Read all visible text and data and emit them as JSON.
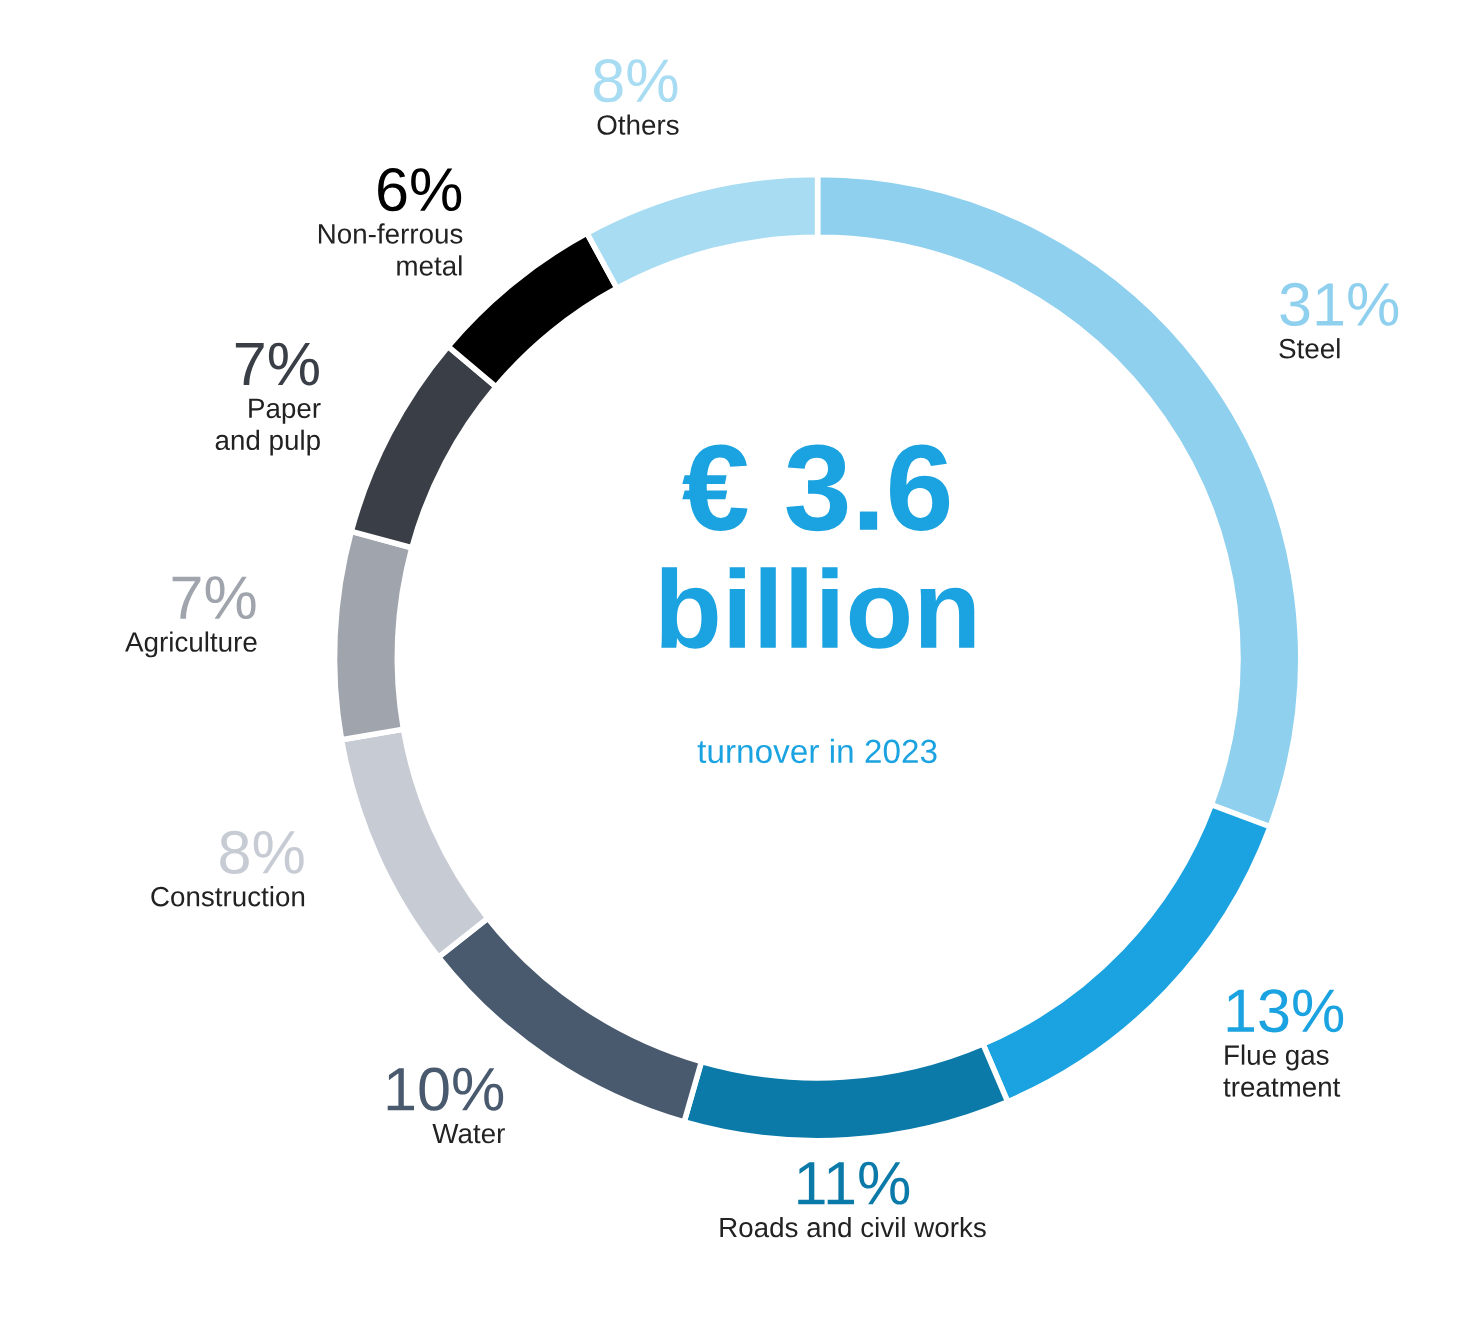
{
  "chart_data": {
    "type": "donut",
    "categories": [
      "Steel",
      "Flue gas\ntreatment",
      "Roads and civil works",
      "Water",
      "Construction",
      "Agriculture",
      "Paper\nand pulp",
      "Non-ferrous\nmetal",
      "Others"
    ],
    "values": [
      31,
      13,
      11,
      10,
      8,
      7,
      7,
      6,
      8
    ],
    "value_labels": [
      "31%",
      "13%",
      "11%",
      "10%",
      "8%",
      "7%",
      "7%",
      "6%",
      "8%"
    ],
    "colors": [
      "#8fd0ef",
      "#1aa3e0",
      "#0b7aa8",
      "#4a5a6e",
      "#c7cbd3",
      "#a0a5ad",
      "#3a3f47",
      "#000000",
      "#a8dcf2"
    ],
    "annotations": [
      "€ 3.6",
      "billion",
      "turnover in 2023"
    ]
  }
}
